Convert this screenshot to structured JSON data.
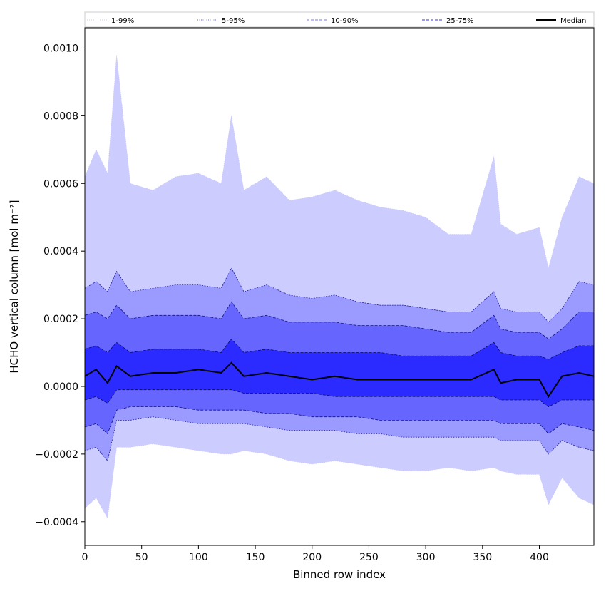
{
  "chart_data": {
    "type": "area",
    "title": "",
    "xlabel": "Binned row index",
    "ylabel": "HCHO vertical column [mol m⁻²]",
    "xlim": [
      0,
      448
    ],
    "ylim": [
      -0.00047,
      0.00106
    ],
    "x_ticks": [
      0,
      50,
      100,
      150,
      200,
      250,
      300,
      350,
      400
    ],
    "x_tick_labels": [
      "0",
      "50",
      "100",
      "150",
      "200",
      "250",
      "300",
      "350",
      "400"
    ],
    "y_ticks": [
      -0.0004,
      -0.0002,
      0.0,
      0.0002,
      0.0004,
      0.0006,
      0.0008,
      0.001
    ],
    "y_tick_labels": [
      "−0.0004",
      "−0.0002",
      "0.0000",
      "0.0002",
      "0.0004",
      "0.0006",
      "0.0008",
      "0.0010"
    ],
    "grid": false,
    "legend_position": "top (above plot, single row)",
    "legend": [
      {
        "label": "1-99%",
        "style": "dotted",
        "color": "#c8c8f0"
      },
      {
        "label": "5-95%",
        "style": "dotted",
        "color": "#6a6ad8"
      },
      {
        "label": "10-90%",
        "style": "dashed",
        "color": "#7777ee"
      },
      {
        "label": "25-75%",
        "style": "dashed",
        "color": "#3333dd"
      },
      {
        "label": "Median",
        "style": "solid",
        "color": "#000000"
      }
    ],
    "band_fill_colors": [
      "#ccccff",
      "#9a9aff",
      "#6666ff",
      "#2b2bff"
    ],
    "x": [
      0,
      10,
      20,
      28,
      40,
      60,
      80,
      100,
      120,
      129,
      140,
      160,
      180,
      200,
      220,
      240,
      260,
      280,
      300,
      320,
      340,
      360,
      366,
      380,
      400,
      408,
      420,
      435,
      448
    ],
    "series": [
      {
        "name": "1-99%",
        "upper": [
          0.00062,
          0.0007,
          0.00063,
          0.00098,
          0.0006,
          0.00058,
          0.00062,
          0.00063,
          0.0006,
          0.0008,
          0.00058,
          0.00062,
          0.00055,
          0.00056,
          0.00058,
          0.00055,
          0.00053,
          0.00052,
          0.0005,
          0.00045,
          0.00045,
          0.00068,
          0.00048,
          0.00045,
          0.00047,
          0.00035,
          0.0005,
          0.00062,
          0.0006
        ],
        "lower": [
          -0.00036,
          -0.00033,
          -0.00039,
          -0.00018,
          -0.00018,
          -0.00017,
          -0.00018,
          -0.00019,
          -0.0002,
          -0.0002,
          -0.00019,
          -0.0002,
          -0.00022,
          -0.00023,
          -0.00022,
          -0.00023,
          -0.00024,
          -0.00025,
          -0.00025,
          -0.00024,
          -0.00025,
          -0.00024,
          -0.00025,
          -0.00026,
          -0.00026,
          -0.00035,
          -0.00027,
          -0.00033,
          -0.00035
        ]
      },
      {
        "name": "5-95%",
        "upper": [
          0.00029,
          0.00031,
          0.00028,
          0.00034,
          0.00028,
          0.00029,
          0.0003,
          0.0003,
          0.00029,
          0.00035,
          0.00028,
          0.0003,
          0.00027,
          0.00026,
          0.00027,
          0.00025,
          0.00024,
          0.00024,
          0.00023,
          0.00022,
          0.00022,
          0.00028,
          0.00023,
          0.00022,
          0.00022,
          0.00019,
          0.00023,
          0.00031,
          0.0003
        ],
        "lower": [
          -0.00019,
          -0.00018,
          -0.00022,
          -0.0001,
          -0.0001,
          -9e-05,
          -0.0001,
          -0.00011,
          -0.00011,
          -0.00011,
          -0.00011,
          -0.00012,
          -0.00013,
          -0.00013,
          -0.00013,
          -0.00014,
          -0.00014,
          -0.00015,
          -0.00015,
          -0.00015,
          -0.00015,
          -0.00015,
          -0.00016,
          -0.00016,
          -0.00016,
          -0.0002,
          -0.00016,
          -0.00018,
          -0.00019
        ]
      },
      {
        "name": "10-90%",
        "upper": [
          0.00021,
          0.00022,
          0.0002,
          0.00024,
          0.0002,
          0.00021,
          0.00021,
          0.00021,
          0.0002,
          0.00025,
          0.0002,
          0.00021,
          0.00019,
          0.00019,
          0.00019,
          0.00018,
          0.00018,
          0.00018,
          0.00017,
          0.00016,
          0.00016,
          0.00021,
          0.00017,
          0.00016,
          0.00016,
          0.00014,
          0.00017,
          0.00022,
          0.00022
        ],
        "lower": [
          -0.00012,
          -0.00011,
          -0.00014,
          -7e-05,
          -6e-05,
          -6e-05,
          -6e-05,
          -7e-05,
          -7e-05,
          -7e-05,
          -7e-05,
          -8e-05,
          -8e-05,
          -9e-05,
          -9e-05,
          -9e-05,
          -0.0001,
          -0.0001,
          -0.0001,
          -0.0001,
          -0.0001,
          -0.0001,
          -0.00011,
          -0.00011,
          -0.00011,
          -0.00014,
          -0.00011,
          -0.00012,
          -0.00013
        ]
      },
      {
        "name": "25-75%",
        "upper": [
          0.00011,
          0.00012,
          0.0001,
          0.00013,
          0.0001,
          0.00011,
          0.00011,
          0.00011,
          0.0001,
          0.00014,
          0.0001,
          0.00011,
          0.0001,
          0.0001,
          0.0001,
          0.0001,
          0.0001,
          9e-05,
          9e-05,
          9e-05,
          9e-05,
          0.00013,
          0.0001,
          9e-05,
          9e-05,
          8e-05,
          0.0001,
          0.00012,
          0.00012
        ],
        "lower": [
          -4e-05,
          -3e-05,
          -5e-05,
          -1e-05,
          -1e-05,
          -1e-05,
          -1e-05,
          -1e-05,
          -1e-05,
          -1e-05,
          -2e-05,
          -2e-05,
          -2e-05,
          -2e-05,
          -3e-05,
          -3e-05,
          -3e-05,
          -3e-05,
          -3e-05,
          -3e-05,
          -3e-05,
          -3e-05,
          -4e-05,
          -4e-05,
          -4e-05,
          -6e-05,
          -4e-05,
          -4e-05,
          -4e-05
        ]
      },
      {
        "name": "Median",
        "values": [
          3e-05,
          5e-05,
          1e-05,
          6e-05,
          3e-05,
          4e-05,
          4e-05,
          5e-05,
          4e-05,
          7e-05,
          3e-05,
          4e-05,
          3e-05,
          2e-05,
          3e-05,
          2e-05,
          2e-05,
          2e-05,
          2e-05,
          2e-05,
          2e-05,
          5e-05,
          1e-05,
          2e-05,
          2e-05,
          -3e-05,
          3e-05,
          4e-05,
          3e-05
        ]
      }
    ]
  }
}
